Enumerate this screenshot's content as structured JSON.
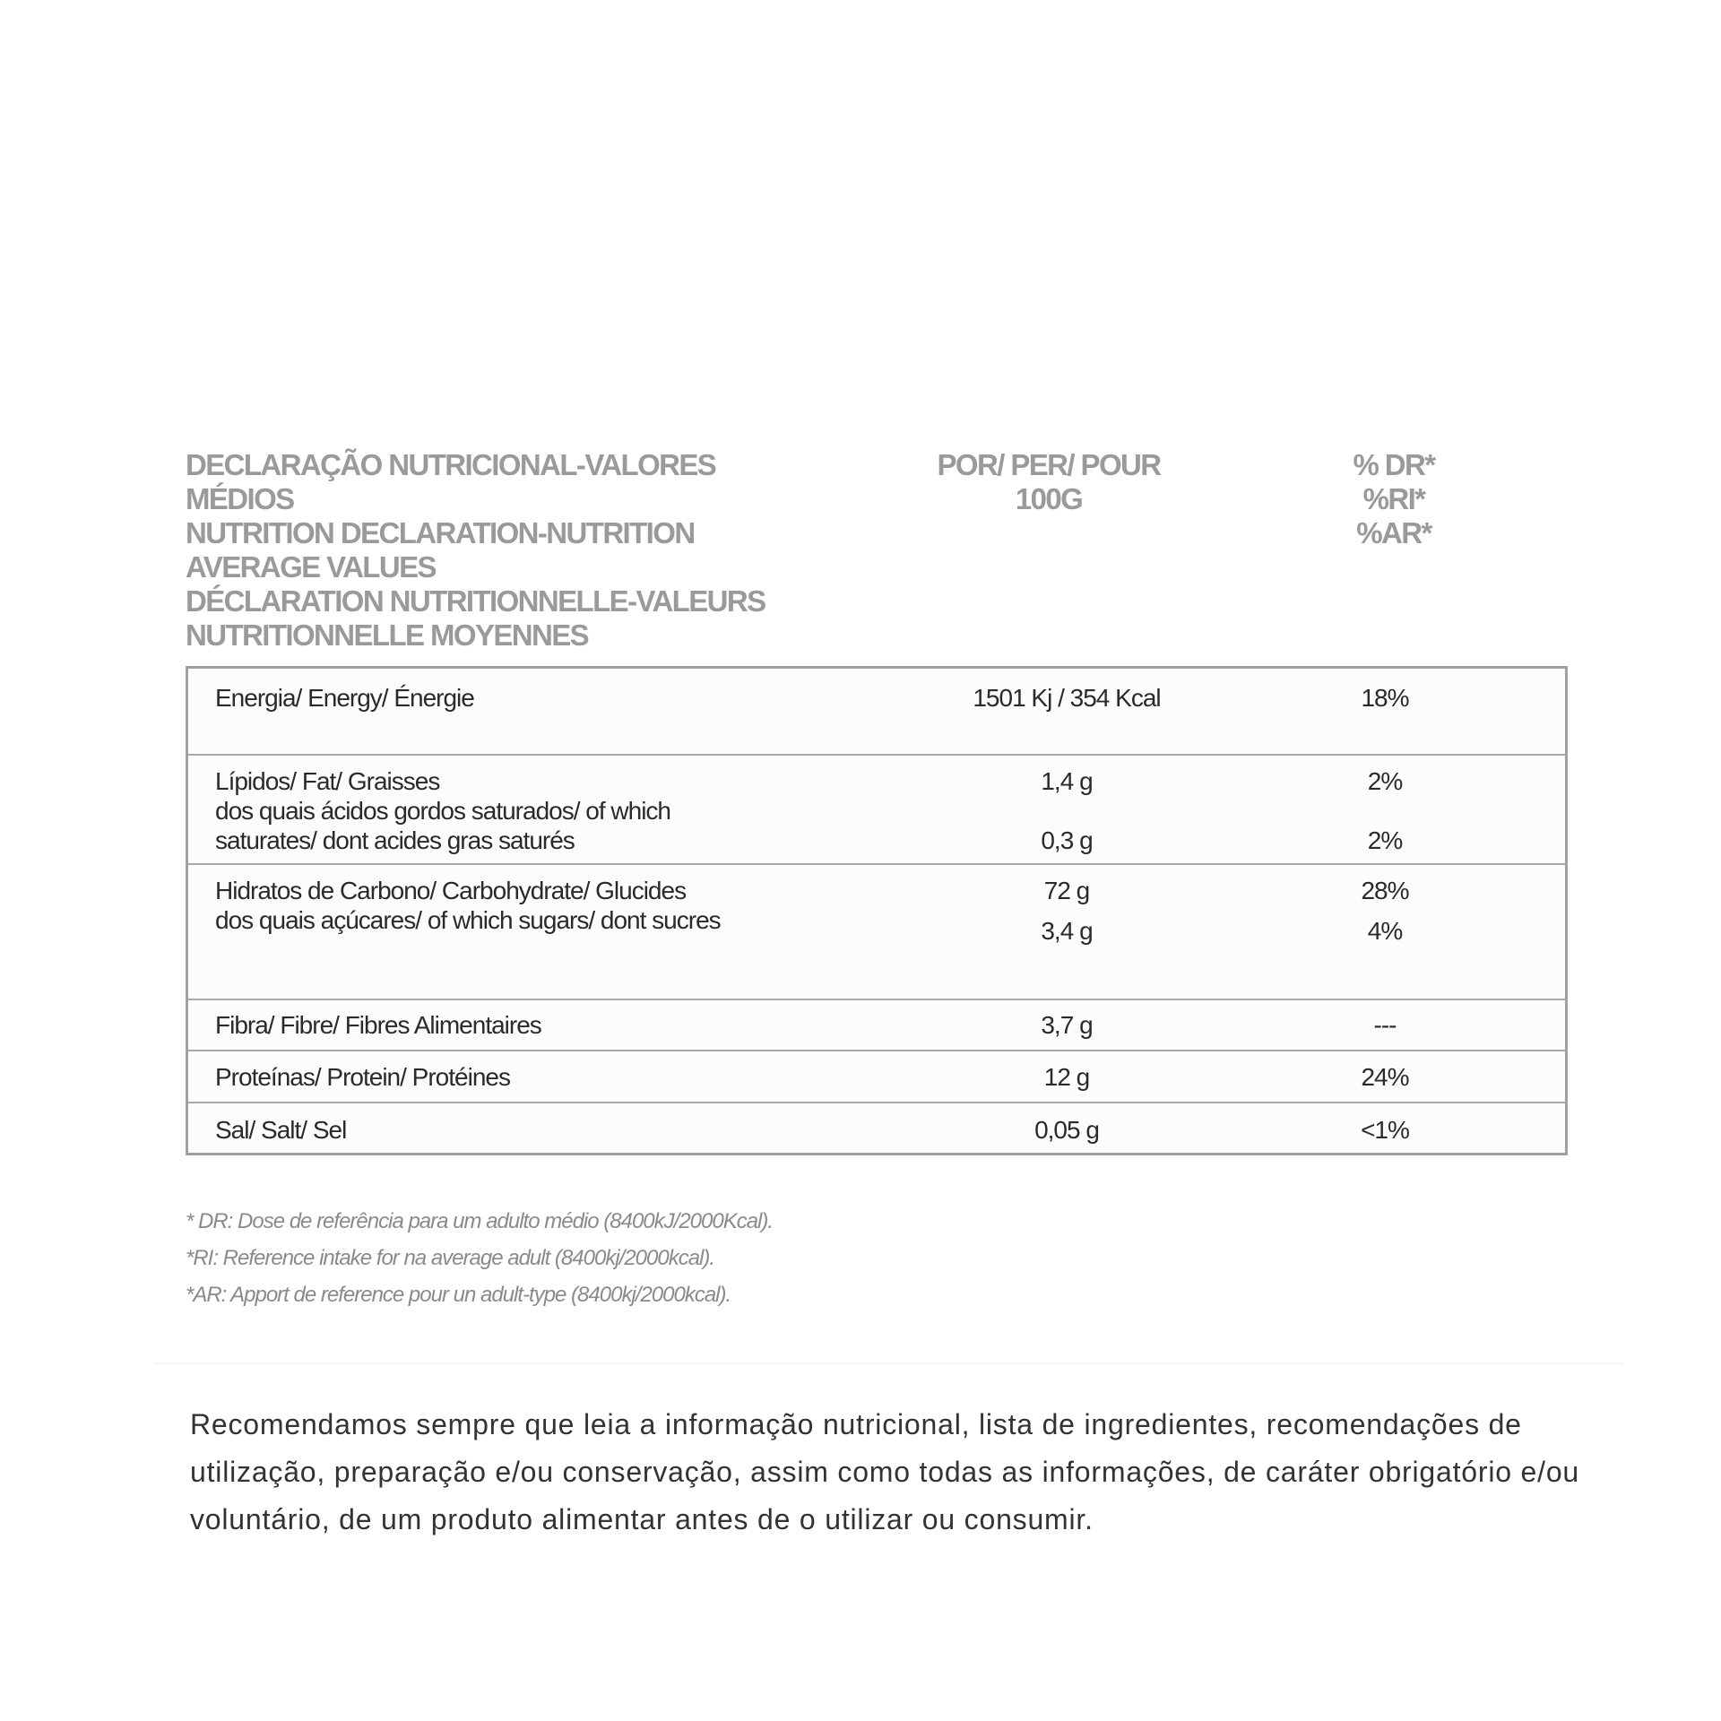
{
  "header": {
    "col1_lines": [
      "DECLARAÇÃO NUTRICIONAL-VALORES",
      "MÉDIOS",
      "NUTRITION DECLARATION-NUTRITION",
      "AVERAGE VALUES",
      "DÉCLARATION NUTRITIONNELLE-VALEURS",
      "NUTRITIONNELLE MOYENNES"
    ],
    "col2_lines": [
      "POR/ PER/ POUR",
      "100G"
    ],
    "col3_lines": [
      "% DR*",
      "%RI*",
      "%AR*"
    ]
  },
  "rows": [
    {
      "label": [
        "Energia/ Energy/ Énergie"
      ],
      "values": [
        "1501 Kj / 354 Kcal"
      ],
      "pct": [
        "18%"
      ]
    },
    {
      "label": [
        "Lípidos/ Fat/ Graisses",
        "dos quais ácidos gordos saturados/ of which",
        "saturates/ dont acides gras saturés"
      ],
      "values": [
        "1,4 g",
        "0,3 g"
      ],
      "pct": [
        "2%",
        "2%"
      ]
    },
    {
      "label": [
        "Hidratos de Carbono/ Carbohydrate/ Glucides",
        "dos quais açúcares/ of which sugars/ dont sucres"
      ],
      "values": [
        "72 g",
        "3,4 g"
      ],
      "pct": [
        "28%",
        "4%"
      ]
    },
    {
      "label": [
        "Fibra/ Fibre/ Fibres Alimentaires"
      ],
      "values": [
        "3,7 g"
      ],
      "pct": [
        "---"
      ]
    },
    {
      "label": [
        "Proteínas/ Protein/ Protéines"
      ],
      "values": [
        "12 g"
      ],
      "pct": [
        "24%"
      ]
    },
    {
      "label": [
        "Sal/ Salt/ Sel"
      ],
      "values": [
        "0,05 g"
      ],
      "pct": [
        "<1%"
      ]
    }
  ],
  "footnotes": [
    "* DR: Dose de referência para um adulto médio (8400kJ/2000Kcal).",
    "*RI: Reference intake for na average adult (8400kj/2000kcal).",
    "*AR: Apport de reference pour un adult-type (8400kj/2000kcal)."
  ],
  "disclaimer": "Recomendamos sempre que leia a informação nutricional, lista de ingredientes, recomendações de utilização, preparação e/ou conservação, assim como todas as informações, de caráter obrigatório e/ou voluntário, de um produto alimentar antes de o utilizar ou consumir."
}
